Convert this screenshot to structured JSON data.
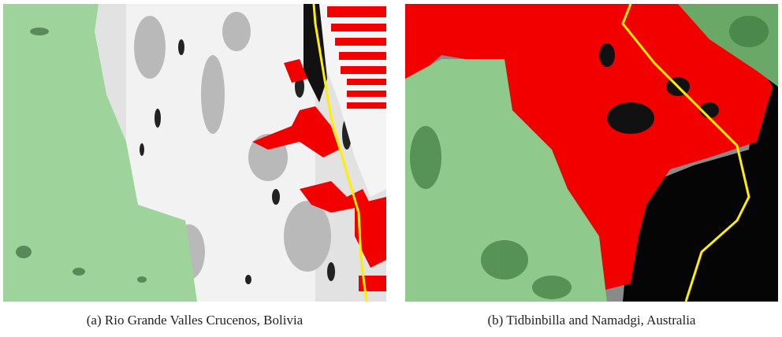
{
  "panels": [
    {
      "caption": "(a) Rio Grande Valles Crucenos, Bolivia"
    },
    {
      "caption": "(b) Tidbinbilla and Namadgi, Australia"
    }
  ]
}
